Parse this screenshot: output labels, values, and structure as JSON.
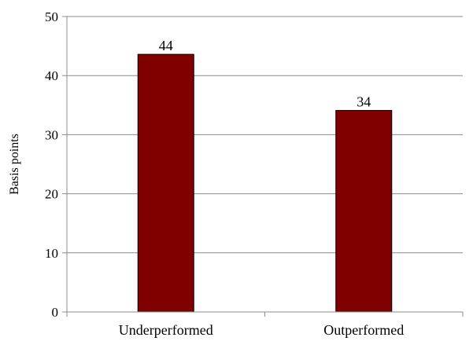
{
  "chart_data": {
    "type": "bar",
    "title": "",
    "xlabel": "",
    "ylabel": "Basis points",
    "categories": [
      "Underperformed",
      "Outperformed"
    ],
    "values": [
      43.6,
      34.1
    ],
    "data_labels": [
      "44",
      "34"
    ],
    "ylim": [
      0,
      50
    ],
    "yticks": [
      0,
      10,
      20,
      30,
      40,
      50
    ],
    "ytick_labels": [
      "0",
      "10",
      "20",
      "30",
      "40",
      "50"
    ],
    "grid": true,
    "legend": "none",
    "colors": {
      "bar": "#800000",
      "bar_edge": "#000000",
      "grid": "#8c8c8c",
      "axis": "#8c8c8c"
    }
  }
}
